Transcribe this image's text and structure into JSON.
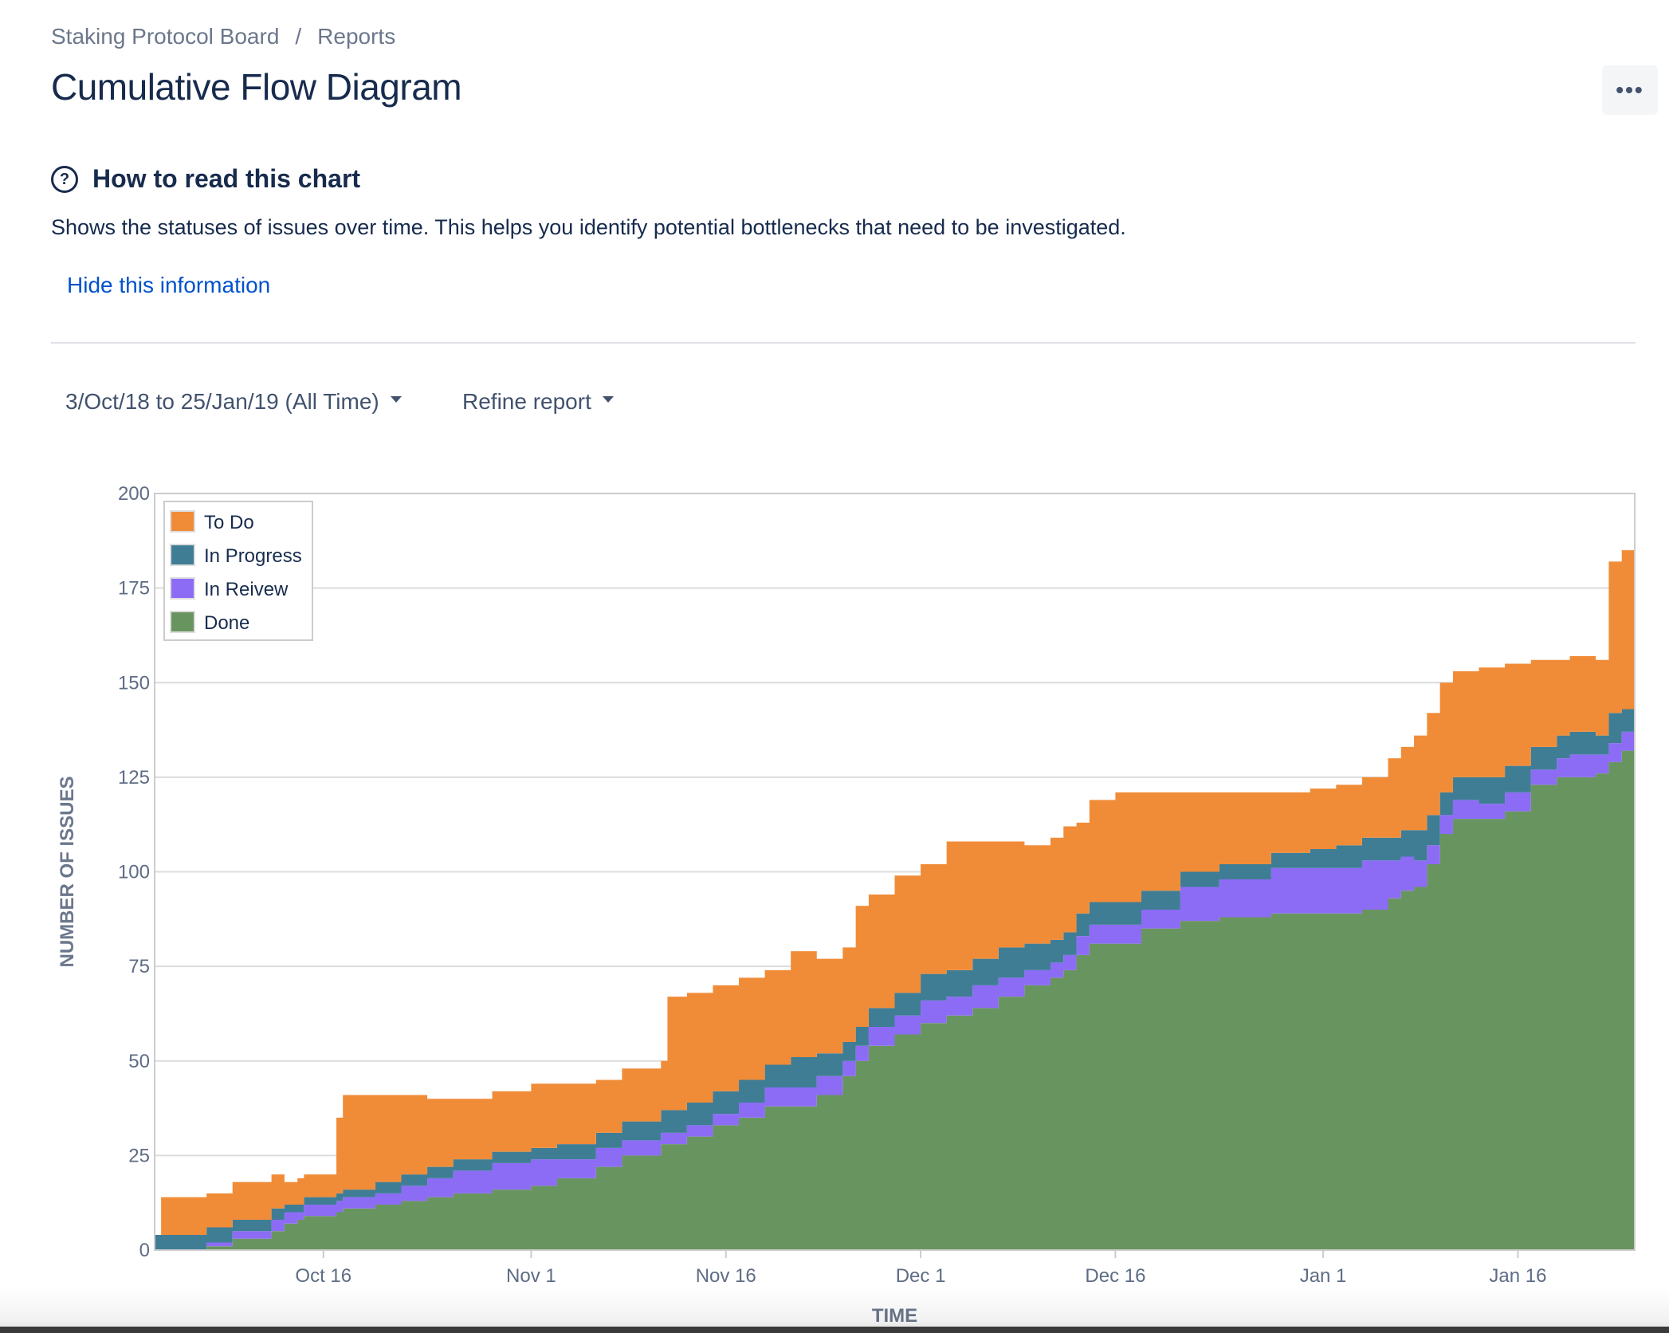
{
  "breadcrumb": {
    "board": "Staking Protocol Board",
    "separator": "/",
    "reports": "Reports"
  },
  "page": {
    "title": "Cumulative Flow Diagram",
    "more_icon": "more-dots-icon"
  },
  "help": {
    "icon": "question-circle-icon",
    "title": "How to read this chart",
    "description": "Shows the statuses of issues over time. This helps you identify potential bottlenecks that need to be investigated.",
    "hide_link": "Hide this information"
  },
  "controls": {
    "date_range": "3/Oct/18 to 25/Jan/19 (All Time)",
    "refine": "Refine report"
  },
  "chart_data": {
    "type": "area",
    "stacked": true,
    "xlabel": "TIME",
    "ylabel": "NUMBER OF ISSUES",
    "x_unit": "days since 3/Oct/18",
    "xlim": [
      0,
      114
    ],
    "ylim": [
      0,
      200
    ],
    "yticks": [
      0,
      25,
      50,
      75,
      100,
      125,
      150,
      175,
      200
    ],
    "xticks": [
      {
        "label": "Oct 16",
        "x": 13
      },
      {
        "label": "Nov 1",
        "x": 29
      },
      {
        "label": "Nov 16",
        "x": 44
      },
      {
        "label": "Dec 1",
        "x": 59
      },
      {
        "label": "Dec 16",
        "x": 74
      },
      {
        "label": "Jan 1",
        "x": 90
      },
      {
        "label": "Jan 16",
        "x": 105
      }
    ],
    "grid": true,
    "legend_position": "top-left",
    "x": [
      0,
      0.5,
      4,
      6,
      9,
      10,
      11,
      11.5,
      14,
      14.5,
      17,
      19,
      21,
      23,
      26,
      29,
      31,
      34,
      36,
      39,
      39.5,
      41,
      43,
      45,
      47,
      49,
      51,
      53,
      54,
      55,
      57,
      59,
      61,
      63,
      65,
      67,
      69,
      70,
      71,
      72,
      74,
      76,
      79,
      82,
      86,
      89,
      91,
      93,
      95,
      96,
      97,
      98,
      99,
      100,
      102,
      104,
      106,
      108,
      109,
      111,
      112,
      113,
      114
    ],
    "series": [
      {
        "name": "Done",
        "color": "#68955f",
        "values": [
          0,
          0,
          1,
          3,
          5,
          7,
          8,
          9,
          10,
          11,
          12,
          13,
          14,
          15,
          16,
          17,
          19,
          22,
          25,
          28,
          28,
          30,
          33,
          35,
          38,
          38,
          41,
          46,
          50,
          54,
          57,
          60,
          62,
          64,
          67,
          70,
          72,
          74,
          78,
          81,
          81,
          85,
          87,
          88,
          89,
          89,
          89,
          90,
          93,
          95,
          96,
          102,
          110,
          114,
          114,
          116,
          123,
          125,
          125,
          126,
          129,
          132,
          145
        ]
      },
      {
        "name": "In Reivew",
        "color": "#8c6cf5",
        "values": [
          0,
          0,
          1,
          2,
          3,
          3,
          2,
          3,
          3,
          3,
          3,
          4,
          5,
          6,
          7,
          7,
          5,
          5,
          4,
          3,
          3,
          3,
          3,
          4,
          5,
          5,
          5,
          4,
          4,
          5,
          5,
          6,
          5,
          6,
          5,
          4,
          4,
          4,
          5,
          5,
          5,
          5,
          9,
          10,
          12,
          12,
          12,
          13,
          10,
          9,
          7,
          5,
          5,
          5,
          4,
          5,
          4,
          5,
          6,
          5,
          5,
          5,
          10
        ]
      },
      {
        "name": "In Progress",
        "color": "#3f7d95",
        "values": [
          4,
          4,
          4,
          3,
          3,
          2,
          2,
          2,
          2,
          2,
          3,
          3,
          3,
          3,
          3,
          3,
          4,
          4,
          5,
          6,
          6,
          6,
          6,
          6,
          6,
          8,
          6,
          5,
          5,
          5,
          6,
          7,
          7,
          7,
          8,
          7,
          6,
          6,
          6,
          6,
          6,
          5,
          4,
          4,
          4,
          5,
          6,
          6,
          6,
          7,
          8,
          8,
          6,
          6,
          7,
          7,
          6,
          6,
          6,
          5,
          8,
          6,
          7
        ]
      },
      {
        "name": "To Do",
        "color": "#f08c38",
        "values": [
          0,
          10,
          9,
          10,
          9,
          6,
          7,
          6,
          20,
          25,
          23,
          21,
          18,
          16,
          16,
          17,
          16,
          14,
          14,
          13,
          30,
          29,
          28,
          27,
          25,
          28,
          25,
          25,
          32,
          30,
          31,
          29,
          34,
          31,
          28,
          26,
          27,
          28,
          24,
          27,
          29,
          26,
          21,
          19,
          16,
          16,
          16,
          16,
          21,
          22,
          25,
          27,
          29,
          28,
          29,
          27,
          23,
          20,
          20,
          20,
          40,
          42,
          33
        ]
      }
    ]
  }
}
